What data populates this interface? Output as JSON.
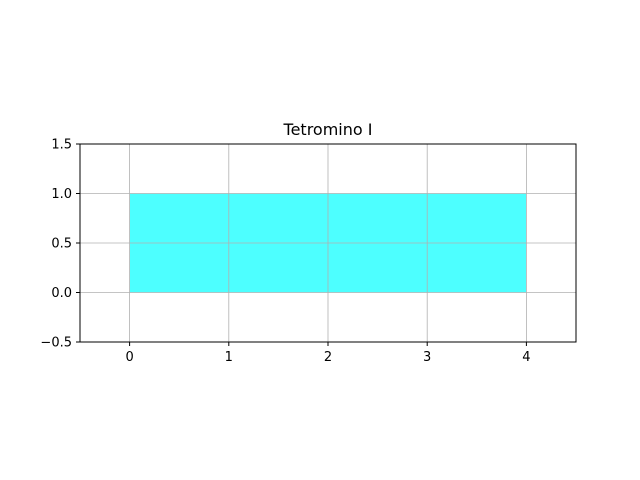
{
  "chart_data": {
    "type": "area",
    "title": "Tetromino I",
    "xlabel": "",
    "ylabel": "",
    "xlim": [
      -0.5,
      4.5
    ],
    "ylim": [
      -0.5,
      1.5
    ],
    "grid": true,
    "aspect": "equal",
    "x_ticks": [
      0,
      1,
      2,
      3,
      4
    ],
    "x_tick_labels": [
      "0",
      "1",
      "2",
      "3",
      "4"
    ],
    "y_ticks": [
      -0.5,
      0.0,
      0.5,
      1.0,
      1.5
    ],
    "y_tick_labels": [
      "−0.5",
      "0.0",
      "0.5",
      "1.0",
      "1.5"
    ],
    "shapes": [
      {
        "kind": "rectangle",
        "x": [
          0,
          4
        ],
        "y": [
          0,
          1
        ],
        "color": "#4dffff"
      }
    ]
  },
  "colors": {
    "fill": "#4dffff",
    "grid": "#b0b0b0",
    "axes": "#000000",
    "background": "#ffffff"
  }
}
